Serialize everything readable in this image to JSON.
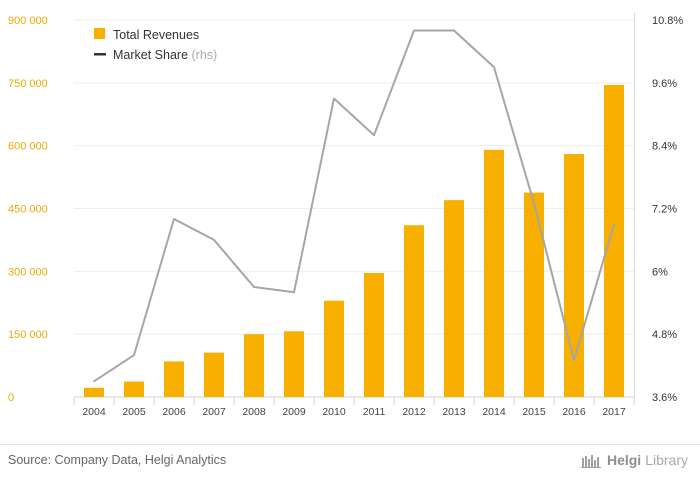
{
  "chart_data": {
    "type": "bar+line",
    "categories": [
      "2004",
      "2005",
      "2006",
      "2007",
      "2008",
      "2009",
      "2010",
      "2011",
      "2012",
      "2013",
      "2014",
      "2015",
      "2016",
      "2017"
    ],
    "series": [
      {
        "name": "Total Revenues",
        "type": "bar",
        "axis": "left",
        "color": "#f8b000",
        "values": [
          22000,
          37000,
          85000,
          106000,
          150000,
          157000,
          230000,
          296000,
          410000,
          470000,
          590000,
          488000,
          580000,
          745000
        ]
      },
      {
        "name": "Market Share",
        "name_suffix": "(rhs)",
        "type": "line",
        "axis": "right",
        "color": "#a6a6a6",
        "values": [
          3.9,
          4.4,
          7.0,
          6.6,
          5.7,
          5.6,
          9.3,
          8.6,
          10.6,
          10.6,
          9.9,
          7.3,
          4.3,
          6.9
        ]
      }
    ],
    "left_axis": {
      "ylim": [
        0,
        900000
      ],
      "ticks": [
        0,
        150000,
        300000,
        450000,
        600000,
        750000,
        900000
      ],
      "tick_labels": [
        "0",
        "150 000",
        "300 000",
        "450 000",
        "600 000",
        "750 000",
        "900 000"
      ]
    },
    "right_axis": {
      "ylim": [
        3.6,
        10.8
      ],
      "ticks": [
        3.6,
        4.8,
        6.0,
        7.2,
        8.4,
        9.6,
        10.8
      ],
      "tick_labels": [
        "3.6%",
        "4.8%",
        "6%",
        "7.2%",
        "8.4%",
        "9.6%",
        "10.8%"
      ]
    },
    "grid": true,
    "legend_position": "top-left"
  },
  "footer": {
    "source": "Source: Company Data, Helgi Analytics",
    "brand_part1": "Helgi",
    "brand_part2": "Library"
  }
}
